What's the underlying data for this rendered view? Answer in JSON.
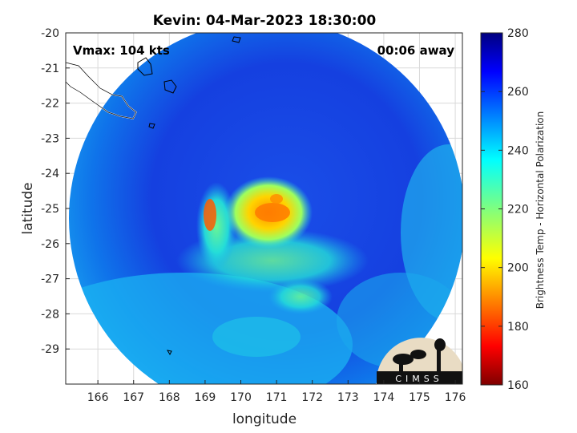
{
  "figure": {
    "title": "Kevin: 04-Mar-2023 18:30:00",
    "vmax_label": "Vmax: 104 kts",
    "time_label": "00:06 away",
    "xlabel": "longitude",
    "ylabel": "latitude",
    "colorbar_label": "Brightness Temp - Horizontal Polarization",
    "logo_text": "CIMSS"
  },
  "chart_data": {
    "type": "heatmap",
    "title": "Kevin: 04-Mar-2023 18:30:00",
    "xlabel": "longitude",
    "ylabel": "latitude",
    "xlim": [
      165.1,
      176.2
    ],
    "ylim": [
      -30.0,
      -20.0
    ],
    "x_ticks": [
      166,
      167,
      168,
      169,
      170,
      171,
      172,
      173,
      174,
      175,
      176
    ],
    "y_ticks": [
      -20,
      -21,
      -22,
      -23,
      -24,
      -25,
      -26,
      -27,
      -28,
      -29
    ],
    "colorbar": {
      "label": "Brightness Temp - Horizontal Polarization",
      "range": [
        160,
        280
      ],
      "ticks": [
        160,
        180,
        200,
        220,
        240,
        260,
        280
      ],
      "colormap": "jet"
    },
    "storm_center": {
      "lon": 170.9,
      "lat": -25.1
    },
    "coldest_core_approx_K": 205,
    "swath_background_approx_K": 262,
    "annotations": [
      "Vmax: 104 kts",
      "00:06 away"
    ]
  }
}
